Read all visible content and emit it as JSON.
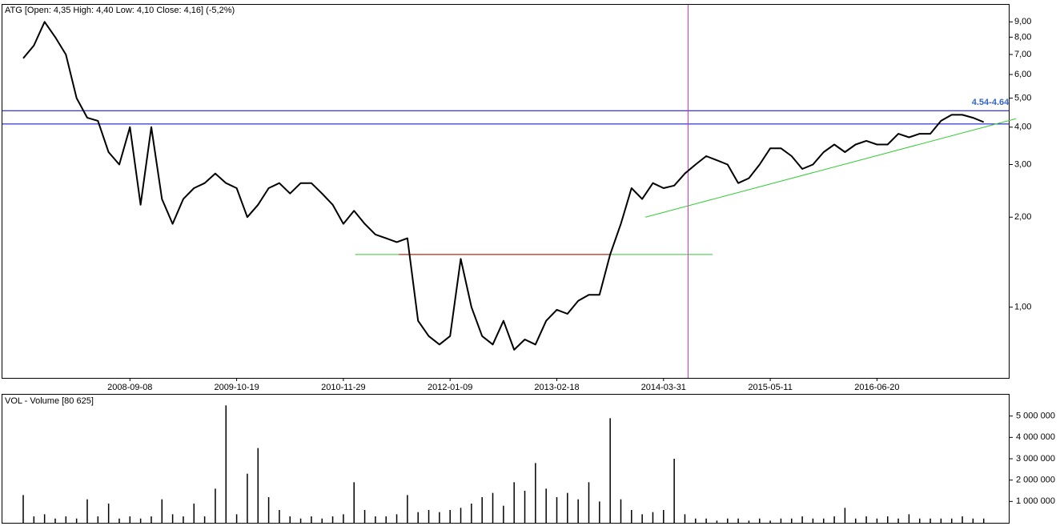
{
  "chart_data": [
    {
      "type": "line",
      "title": "ATG [Open: 4,35  High: 4,40  Low: 4,10  Close: 4,16] (-5,2%)",
      "categories": [
        null,
        null,
        null,
        null,
        null,
        null,
        null,
        null,
        null,
        null,
        "2008-09-08",
        null,
        null,
        null,
        null,
        null,
        null,
        null,
        null,
        null,
        "2009-10-19",
        null,
        null,
        null,
        null,
        null,
        null,
        null,
        null,
        null,
        "2010-11-29",
        null,
        null,
        null,
        null,
        null,
        null,
        null,
        null,
        null,
        "2012-01-09",
        null,
        null,
        null,
        null,
        null,
        null,
        null,
        null,
        null,
        "2013-02-18",
        null,
        null,
        null,
        null,
        null,
        null,
        null,
        null,
        null,
        "2014-03-31",
        null,
        null,
        null,
        null,
        null,
        null,
        null,
        null,
        null,
        "2015-05-11",
        null,
        null,
        null,
        null,
        null,
        null,
        null,
        null,
        null,
        "2016-06-20",
        null,
        null,
        null,
        null,
        null,
        null,
        null,
        null,
        null,
        null
      ],
      "values": [
        6.8,
        7.5,
        9.0,
        8.0,
        7.0,
        5.0,
        4.3,
        4.2,
        3.3,
        3.0,
        4.0,
        2.2,
        4.0,
        2.3,
        1.9,
        2.3,
        2.5,
        2.6,
        2.8,
        2.6,
        2.5,
        2.0,
        2.2,
        2.5,
        2.6,
        2.4,
        2.6,
        2.6,
        2.4,
        2.2,
        1.9,
        2.1,
        1.9,
        1.75,
        1.7,
        1.65,
        1.7,
        0.9,
        0.8,
        0.75,
        0.8,
        1.45,
        1.0,
        0.8,
        0.75,
        0.9,
        0.72,
        0.78,
        0.75,
        0.9,
        0.98,
        0.95,
        1.05,
        1.1,
        1.1,
        1.5,
        1.9,
        2.5,
        2.3,
        2.6,
        2.5,
        2.55,
        2.8,
        3.0,
        3.2,
        3.1,
        3.0,
        2.6,
        2.7,
        3.0,
        3.4,
        3.4,
        3.2,
        2.9,
        3.0,
        3.3,
        3.5,
        3.3,
        3.5,
        3.6,
        3.5,
        3.5,
        3.8,
        3.7,
        3.8,
        3.8,
        4.2,
        4.4,
        4.4,
        4.3,
        4.16
      ],
      "color": "#000000",
      "log_scale": true,
      "ylim": [
        0.58,
        10.2
      ],
      "yticks": [
        {
          "value": 1,
          "label": "1,00"
        },
        {
          "value": 2,
          "label": "2,00"
        },
        {
          "value": 3,
          "label": "3,00"
        },
        {
          "value": 4,
          "label": "4,00"
        },
        {
          "value": 5,
          "label": "5,00"
        },
        {
          "value": 6,
          "label": "6,00"
        },
        {
          "value": 7,
          "label": "7,00"
        },
        {
          "value": 8,
          "label": "8,00"
        },
        {
          "value": 9,
          "label": "9,00"
        }
      ],
      "hlines": [
        {
          "y": 4.54,
          "color": "#0000cc"
        },
        {
          "y": 4.1,
          "color": "#0000cc"
        }
      ],
      "segments": [
        {
          "x": [
            58.3,
            93.2
          ],
          "y": [
            2.0,
            4.27
          ],
          "color": "#33cc33"
        },
        {
          "x": [
            31.1,
            64.6
          ],
          "y": [
            1.5,
            1.5
          ],
          "color": "#33cc33"
        },
        {
          "x": [
            35.2,
            55.0
          ],
          "y": [
            1.5,
            1.5
          ],
          "color": "#cc0000"
        }
      ],
      "vline": {
        "x": 62.3,
        "color": "#cc33cc"
      },
      "annotation": "4.54-4.64"
    },
    {
      "type": "bar",
      "title": "VOL - Volume [80 625]",
      "color": "#000000",
      "values": [
        1300000,
        300000,
        400000,
        200000,
        300000,
        200000,
        1100000,
        300000,
        900000,
        200000,
        300000,
        200000,
        300000,
        1100000,
        400000,
        300000,
        900000,
        300000,
        1600000,
        5500000,
        400000,
        2300000,
        3500000,
        1200000,
        600000,
        300000,
        200000,
        300000,
        200000,
        300000,
        400000,
        1900000,
        600000,
        300000,
        300000,
        400000,
        1300000,
        500000,
        600000,
        500000,
        600000,
        700000,
        900000,
        1200000,
        1400000,
        800000,
        1900000,
        1500000,
        2800000,
        1600000,
        1200000,
        1400000,
        1100000,
        1900000,
        1000000,
        4900000,
        1100000,
        600000,
        400000,
        500000,
        600000,
        3000000,
        400000,
        200000,
        200000,
        100000,
        200000,
        200000,
        100000,
        200000,
        100000,
        200000,
        200000,
        300000,
        200000,
        200000,
        300000,
        700000,
        200000,
        300000,
        200000,
        300000,
        200000,
        400000,
        200000,
        200000,
        200000,
        200000,
        300000,
        200000,
        200000
      ],
      "ylim": [
        0,
        6000000
      ],
      "yticks": [
        {
          "value": 1000000,
          "label": "1 000 000"
        },
        {
          "value": 2000000,
          "label": "2 000 000"
        },
        {
          "value": 3000000,
          "label": "3 000 000"
        },
        {
          "value": 4000000,
          "label": "4 000 000"
        },
        {
          "value": 5000000,
          "label": "5 000 000"
        }
      ]
    }
  ]
}
